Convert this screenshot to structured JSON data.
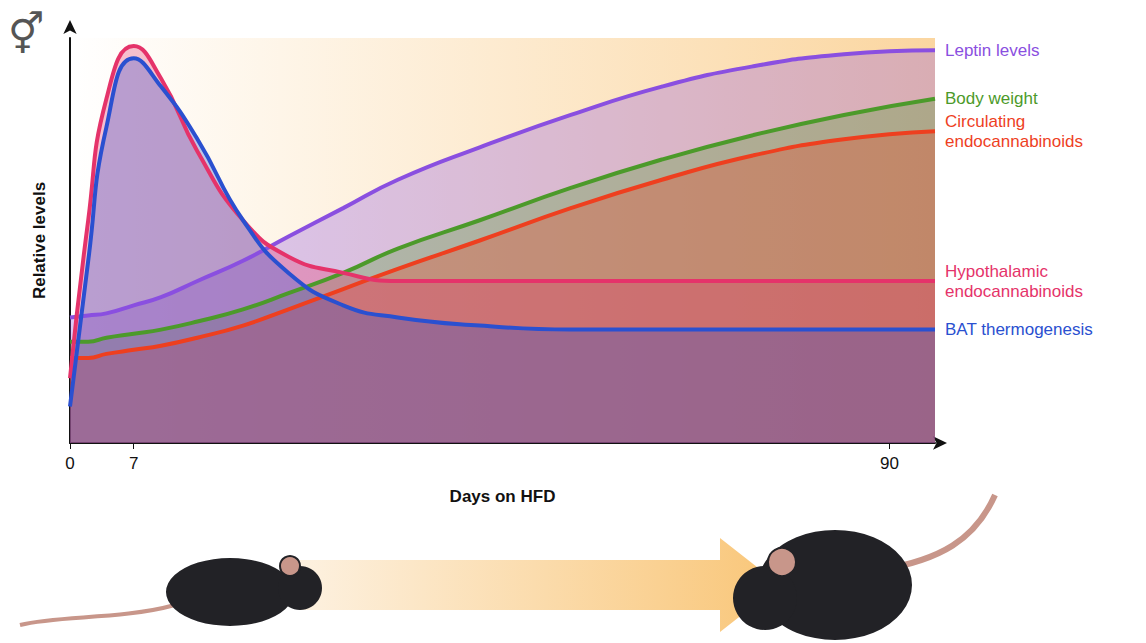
{
  "chart_data": {
    "type": "line",
    "x_label": "Days on HFD",
    "y_label": "Relative levels",
    "annotations": [
      "⚥"
    ],
    "x": [
      0,
      2,
      4,
      7,
      10,
      14,
      19,
      24,
      30,
      36,
      45,
      55,
      65,
      75,
      85,
      95
    ],
    "xlim": [
      0,
      95
    ],
    "xticks": [
      0,
      7,
      90
    ],
    "ylim": [
      0,
      100
    ],
    "yticks": [],
    "tick_labels": "x",
    "grid": false,
    "series": [
      {
        "name": "Leptin levels",
        "color": "#8a4fe0",
        "values": [
          31,
          31.5,
          32,
          34,
          36,
          40,
          45,
          51,
          58,
          65,
          73,
          81,
          88,
          93,
          96,
          97
        ]
      },
      {
        "name": "Body weight",
        "color": "#4c9a2a",
        "values": [
          25,
          25,
          26,
          27,
          28,
          30,
          33,
          37,
          42,
          48,
          55,
          63,
          70,
          76,
          81,
          85
        ]
      },
      {
        "name": "Circulating endocannabinoids",
        "color": "#ee3f1f",
        "values": [
          21,
          21,
          22,
          23,
          24,
          26,
          29,
          33,
          38,
          43,
          50,
          58,
          65,
          71,
          75,
          77
        ]
      },
      {
        "name": "Hypothalamic endocannabinoids",
        "color": "#e5336a",
        "values": [
          16,
          55,
          85,
          98,
          90,
          72,
          55,
          46,
          42,
          40,
          40,
          40,
          40,
          40,
          40,
          40
        ]
      },
      {
        "name": "BAT thermogenesis",
        "color": "#2a50d0",
        "values": [
          9,
          45,
          78,
          95,
          88,
          75,
          55,
          42,
          34,
          31,
          29,
          28,
          28,
          28,
          28,
          28
        ]
      }
    ]
  }
}
